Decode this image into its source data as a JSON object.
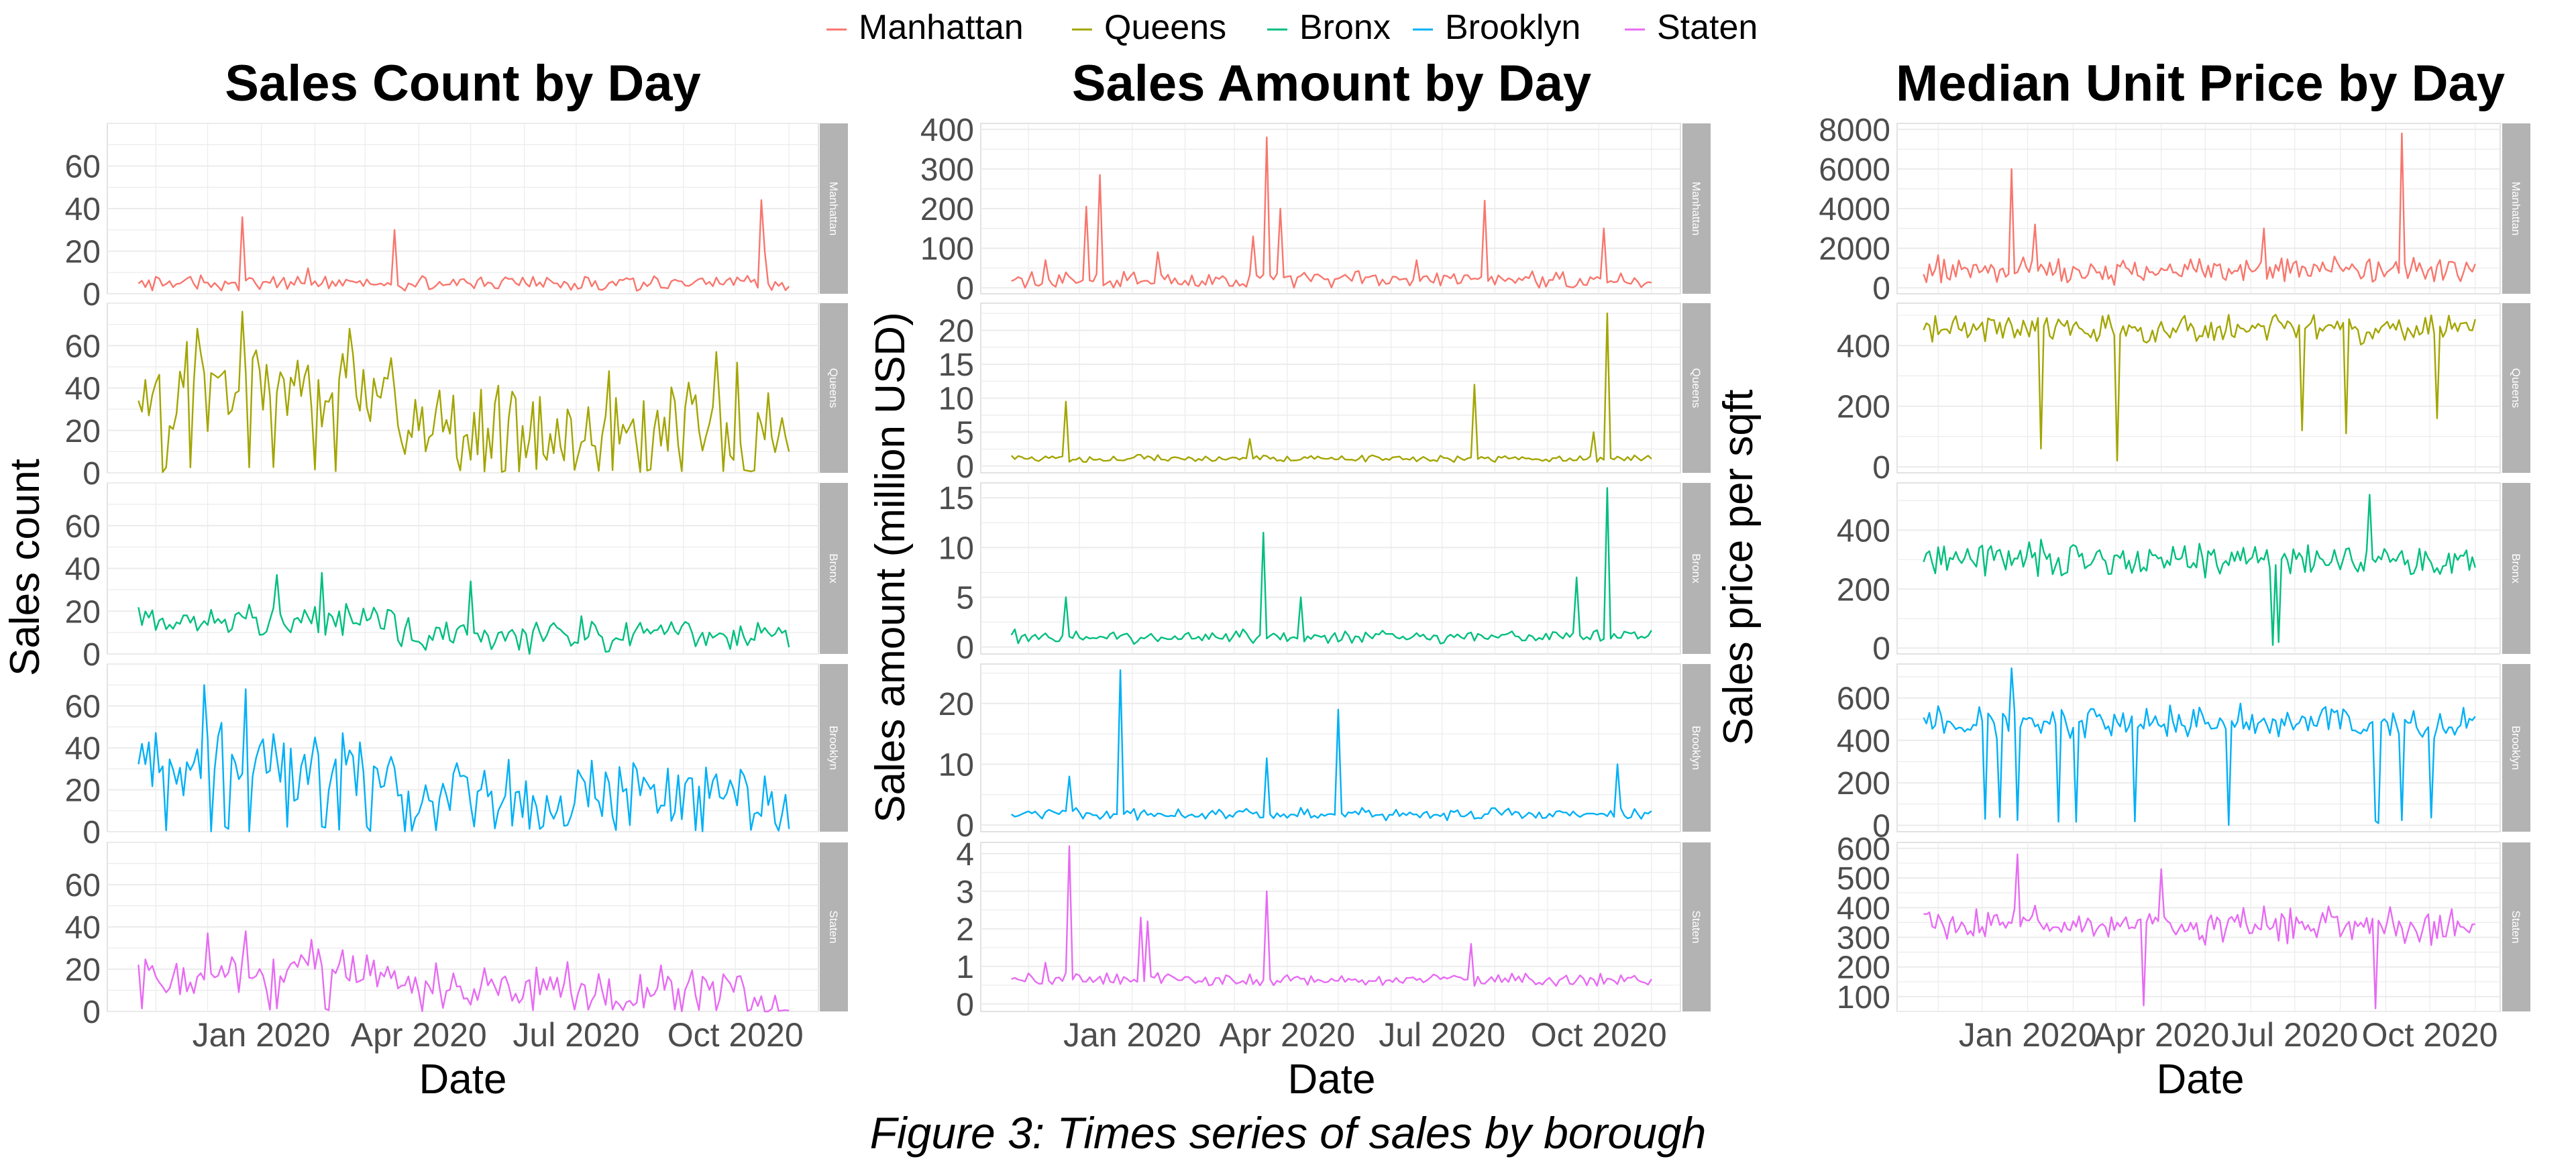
{
  "figure": {
    "caption": "Figure 3: Times series of sales by borough",
    "legend": [
      "Manhattan",
      "Queens",
      "Bronx",
      "Brooklyn",
      "Staten"
    ],
    "series_colors": {
      "Manhattan": "#F8766D",
      "Queens": "#A3A500",
      "Bronx": "#00BF7D",
      "Brooklyn": "#00B0F6",
      "Staten": "#E76BF3"
    },
    "strip_color": "#B3B3B3",
    "grid_color": "#EBEBEB",
    "legend_position": "top",
    "facet_labels_position": "right"
  },
  "chart_data": [
    {
      "type": "line",
      "title": "Sales Count by Day",
      "xlabel": "Date",
      "ylabel": "Sales count",
      "x_ticks": [
        "Jan 2020",
        "Apr 2020",
        "Jul 2020",
        "Oct 2020"
      ],
      "shared_y": true,
      "panels": [
        {
          "name": "Manhattan",
          "ylim": [
            0,
            80
          ],
          "y_ticks": [
            0,
            20,
            40,
            60
          ],
          "baseline": 5,
          "noise": 2.5,
          "zero_prob": 0,
          "spikes": [
            [
              "2019-12-20",
              36
            ],
            [
              "2020-03-18",
              30
            ],
            [
              "2020-01-28",
              12
            ],
            [
              "2020-10-15",
              44
            ],
            [
              "2020-10-18",
              20
            ]
          ]
        },
        {
          "name": "Queens",
          "ylim": [
            0,
            80
          ],
          "y_ticks": [
            0,
            20,
            40,
            60
          ],
          "baseline": 40,
          "noise": 14,
          "zero_prob": 0.1,
          "changes": [
            [
              "2020-03-20",
              22
            ]
          ],
          "spikes": [
            [
              "2019-12-20",
              76
            ],
            [
              "2019-11-25",
              68
            ],
            [
              "2020-02-20",
              68
            ],
            [
              "2020-07-20",
              48
            ],
            [
              "2020-09-20",
              57
            ],
            [
              "2020-10-01",
              52
            ]
          ]
        },
        {
          "name": "Bronx",
          "ylim": [
            0,
            80
          ],
          "y_ticks": [
            0,
            20,
            40,
            60
          ],
          "baseline": 15,
          "noise": 6,
          "zero_prob": 0,
          "changes": [
            [
              "2020-03-20",
              9
            ]
          ],
          "spikes": [
            [
              "2020-01-10",
              37
            ],
            [
              "2020-02-05",
              38
            ],
            [
              "2020-04-30",
              34
            ]
          ]
        },
        {
          "name": "Brooklyn",
          "ylim": [
            0,
            80
          ],
          "y_ticks": [
            0,
            20,
            40,
            60
          ],
          "baseline": 32,
          "noise": 13,
          "zero_prob": 0.1,
          "changes": [
            [
              "2020-03-20",
              17
            ]
          ],
          "spikes": [
            [
              "2019-11-28",
              70
            ],
            [
              "2019-12-22",
              68
            ],
            [
              "2019-12-08",
              52
            ],
            [
              "2020-02-01",
              45
            ]
          ]
        },
        {
          "name": "Staten",
          "ylim": [
            0,
            80
          ],
          "y_ticks": [
            0,
            20,
            40,
            60
          ],
          "baseline": 18,
          "noise": 8,
          "zero_prob": 0.06,
          "changes": [
            [
              "2020-03-20",
              11
            ],
            [
              "2020-10-08",
              2
            ]
          ],
          "spikes": [
            [
              "2019-12-01",
              37
            ],
            [
              "2019-12-22",
              38
            ],
            [
              "2020-01-30",
              34
            ]
          ]
        }
      ]
    },
    {
      "type": "line",
      "title": "Sales Amount by Day",
      "xlabel": "Date",
      "ylabel": "Sales amount (million USD)",
      "x_ticks": [
        "Jan 2020",
        "Apr 2020",
        "Jul 2020",
        "Oct 2020"
      ],
      "shared_y": false,
      "panels": [
        {
          "name": "Manhattan",
          "ylim": [
            -15,
            415
          ],
          "y_ticks": [
            0,
            100,
            200,
            300,
            400
          ],
          "baseline": 20,
          "noise": 16,
          "zero_prob": 0,
          "spikes": [
            [
              "2019-11-10",
              70
            ],
            [
              "2019-12-05",
              205
            ],
            [
              "2019-12-12",
              285
            ],
            [
              "2020-01-15",
              90
            ],
            [
              "2020-03-12",
              130
            ],
            [
              "2020-03-20",
              380
            ],
            [
              "2020-03-28",
              200
            ],
            [
              "2020-07-25",
              220
            ],
            [
              "2020-06-15",
              70
            ],
            [
              "2020-10-03",
              150
            ]
          ]
        },
        {
          "name": "Queens",
          "ylim": [
            -1,
            24
          ],
          "y_ticks": [
            0,
            5,
            10,
            15,
            20
          ],
          "baseline": 1.1,
          "noise": 0.4,
          "zero_prob": 0,
          "spikes": [
            [
              "2019-11-22",
              9.5
            ],
            [
              "2020-03-10",
              4
            ],
            [
              "2020-07-20",
              12
            ],
            [
              "2020-09-28",
              5
            ],
            [
              "2020-10-05",
              22.5
            ]
          ]
        },
        {
          "name": "Bronx",
          "ylim": [
            -0.7,
            16.5
          ],
          "y_ticks": [
            0,
            5,
            10,
            15
          ],
          "baseline": 1,
          "noise": 0.5,
          "zero_prob": 0,
          "spikes": [
            [
              "2019-11-22",
              5
            ],
            [
              "2020-03-18",
              11.5
            ],
            [
              "2020-04-08",
              5
            ],
            [
              "2020-09-18",
              7
            ],
            [
              "2020-10-05",
              16
            ]
          ]
        },
        {
          "name": "Brooklyn",
          "ylim": [
            -1.1,
            26.5
          ],
          "y_ticks": [
            0,
            10,
            20
          ],
          "baseline": 1.8,
          "noise": 0.7,
          "zero_prob": 0,
          "spikes": [
            [
              "2019-11-25",
              8
            ],
            [
              "2019-12-25",
              25.5
            ],
            [
              "2020-03-20",
              11
            ],
            [
              "2020-04-30",
              19
            ],
            [
              "2020-10-12",
              10
            ]
          ]
        },
        {
          "name": "Staten",
          "ylim": [
            -0.2,
            4.3
          ],
          "y_ticks": [
            0,
            1,
            2,
            3,
            4
          ],
          "baseline": 0.65,
          "noise": 0.12,
          "zero_prob": 0,
          "spikes": [
            [
              "2019-11-25",
              4.2
            ],
            [
              "2019-11-10",
              1.1
            ],
            [
              "2020-01-05",
              2.3
            ],
            [
              "2020-01-10",
              2.2
            ],
            [
              "2020-03-20",
              3.0
            ],
            [
              "2020-07-18",
              1.6
            ]
          ]
        }
      ]
    },
    {
      "type": "line",
      "title": "Median Unit Price by Day",
      "xlabel": "Date",
      "ylabel": "Sales price per sqft",
      "x_ticks": [
        "Jan 2020",
        "Apr 2020",
        "Jul 2020",
        "Oct 2020"
      ],
      "shared_y": false,
      "panels": [
        {
          "name": "Manhattan",
          "ylim": [
            -300,
            8300
          ],
          "y_ticks": [
            0,
            2000,
            4000,
            6000,
            8000
          ],
          "baseline": 900,
          "noise": 500,
          "zero_prob": 0,
          "spikes": [
            [
              "2019-12-20",
              6000
            ],
            [
              "2020-01-05",
              3200
            ],
            [
              "2020-09-12",
              7800
            ],
            [
              "2020-06-10",
              3000
            ]
          ]
        },
        {
          "name": "Queens",
          "ylim": [
            -20,
            540
          ],
          "y_ticks": [
            0,
            200,
            400
          ],
          "baseline": 455,
          "noise": 35,
          "zero_prob": 0,
          "dips": [
            [
              "2020-01-10",
              60
            ],
            [
              "2020-03-01",
              20
            ],
            [
              "2020-07-05",
              120
            ],
            [
              "2020-08-05",
              110
            ],
            [
              "2020-10-05",
              160
            ]
          ]
        },
        {
          "name": "Bronx",
          "ylim": [
            -20,
            560
          ],
          "y_ticks": [
            0,
            200,
            400
          ],
          "baseline": 300,
          "noise": 45,
          "zero_prob": 0,
          "dips": [
            [
              "2020-06-15",
              10
            ],
            [
              "2020-06-20",
              20
            ]
          ],
          "spikes": [
            [
              "2020-08-20",
              520
            ]
          ]
        },
        {
          "name": "Brooklyn",
          "ylim": [
            -30,
            760
          ],
          "y_ticks": [
            0,
            200,
            400,
            600
          ],
          "baseline": 480,
          "noise": 60,
          "zero_prob": 0.06,
          "spikes": [
            [
              "2019-12-20",
              740
            ]
          ]
        },
        {
          "name": "Staten",
          "ylim": [
            50,
            620
          ],
          "y_ticks": [
            100,
            200,
            300,
            400,
            500,
            600
          ],
          "baseline": 340,
          "noise": 45,
          "zero_prob": 0,
          "dips": [
            [
              "2020-03-20",
              70
            ],
            [
              "2020-08-25",
              60
            ]
          ],
          "spikes": [
            [
              "2019-12-25",
              580
            ],
            [
              "2020-04-01",
              530
            ]
          ]
        }
      ]
    }
  ]
}
